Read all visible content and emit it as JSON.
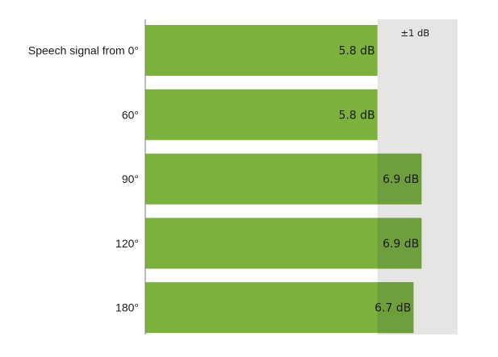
{
  "chart_data": {
    "type": "bar",
    "orientation": "horizontal",
    "categories": [
      "Speech signal from 0°",
      "60°",
      "90°",
      "120°",
      "180°"
    ],
    "values": [
      5.8,
      5.8,
      6.9,
      6.9,
      6.7
    ],
    "value_labels": [
      "5.8 dB",
      "5.8 dB",
      "6.9 dB",
      "6.9 dB",
      "6.7 dB"
    ],
    "unit": "dB",
    "tolerance_band": {
      "label": "±1 dB",
      "from": 5.8,
      "to": 7.8
    },
    "xlim": [
      0,
      7.8
    ],
    "grid": false,
    "legend": "none",
    "colors": {
      "bar": "#7bb13c",
      "bar_in_band": "#6f9f3c",
      "band": "#e6e5e3",
      "axis": "#7a7a7a",
      "text": "#1a1a1a"
    }
  }
}
